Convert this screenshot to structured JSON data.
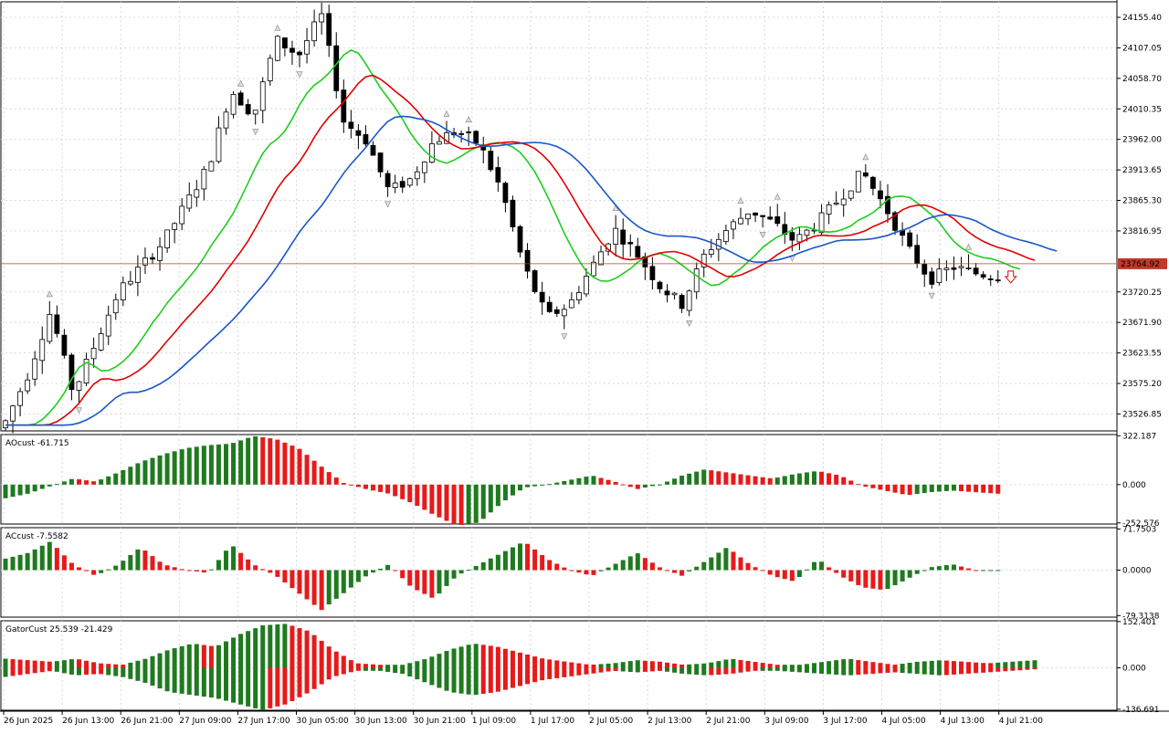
{
  "colors": {
    "bull": "#ffffff",
    "bear": "#000000",
    "green": "#1fcc1f",
    "red_line": "#e00000",
    "blue": "#1a57c8",
    "hist_up": "#1f7a1f",
    "hist_down": "#e61a1a",
    "price_line": "#c0392b",
    "grid": "#d9d9d9"
  },
  "chart_data": [
    {
      "type": "candlestick",
      "symbol_timeframe": "",
      "price_axis_ticks": [
        "24155.40",
        "24107.05",
        "24058.70",
        "24010.35",
        "23962.00",
        "23913.65",
        "23865.30",
        "23816.95",
        "23764.92",
        "23720.25",
        "23671.90",
        "23623.55",
        "23575.20",
        "23526.85"
      ],
      "ylim": [
        23500,
        24180
      ],
      "current_price": "23764.92",
      "time_labels": [
        "26 Jun 2025",
        "26 Jun 13:00",
        "26 Jun 21:00",
        "27 Jun 09:00",
        "27 Jun 17:00",
        "30 Jun 05:00",
        "30 Jun 13:00",
        "30 Jun 21:00",
        "1 Jul 09:00",
        "1 Jul 17:00",
        "2 Jul 05:00",
        "2 Jul 13:00",
        "2 Jul 21:00",
        "3 Jul 09:00",
        "3 Jul 17:00",
        "4 Jul 05:00",
        "4 Jul 13:00",
        "4 Jul 21:00"
      ],
      "close_anchors": [
        23515,
        23590,
        23690,
        23560,
        23640,
        23720,
        23760,
        23800,
        23860,
        23920,
        24040,
        24000,
        24120,
        24095,
        24160,
        23990,
        23960,
        23880,
        23900,
        23960,
        23975,
        23955,
        23880,
        23760,
        23680,
        23700,
        23760,
        23820,
        23780,
        23730,
        23700,
        23780,
        23820,
        23850,
        23830,
        23800,
        23830,
        23870,
        23910,
        23855,
        23790,
        23740,
        23760,
        23750,
        23745
      ],
      "series": [
        {
          "name": "green",
          "note": "alligator lips"
        },
        {
          "name": "red",
          "note": "alligator teeth"
        },
        {
          "name": "blue",
          "note": "alligator jaw"
        }
      ]
    },
    {
      "type": "histogram",
      "label": "AOcust -61.715",
      "ticks": [
        "322.187",
        "0.000",
        "-252.576"
      ],
      "ylim": [
        -260,
        330
      ],
      "anchors": [
        -90,
        -60,
        -10,
        40,
        20,
        80,
        150,
        200,
        240,
        260,
        270,
        320,
        300,
        240,
        120,
        10,
        -30,
        -60,
        -120,
        -200,
        -270,
        -250,
        -120,
        -20,
        0,
        30,
        60,
        20,
        -30,
        0,
        60,
        100,
        80,
        60,
        40,
        70,
        90,
        60,
        -10,
        -40,
        -70,
        -50,
        -40,
        -50,
        -60
      ]
    },
    {
      "type": "histogram",
      "label": "ACcust -7.5582",
      "ticks": [
        "71.7503",
        "0.0000",
        "-79.3138"
      ],
      "ylim": [
        -82,
        74
      ],
      "anchors": [
        20,
        30,
        50,
        10,
        -10,
        10,
        40,
        10,
        0,
        -5,
        45,
        10,
        -10,
        -40,
        -70,
        -40,
        -10,
        10,
        -30,
        -50,
        -10,
        10,
        30,
        50,
        20,
        0,
        -10,
        10,
        30,
        5,
        -10,
        15,
        40,
        10,
        -10,
        -20,
        20,
        -10,
        -30,
        -35,
        -15,
        5,
        10,
        0,
        0
      ]
    },
    {
      "type": "histogram",
      "label": "GatorCust 25.539 -21.429",
      "ticks": [
        "152.401",
        "0.000",
        "-136.691"
      ],
      "ylim": [
        -140,
        155
      ],
      "upper_anchors": [
        30,
        25,
        20,
        30,
        15,
        10,
        30,
        60,
        80,
        70,
        110,
        140,
        145,
        120,
        60,
        15,
        10,
        10,
        30,
        60,
        80,
        70,
        50,
        30,
        20,
        10,
        15,
        25,
        20,
        10,
        15,
        30,
        20,
        10,
        10,
        20,
        30,
        20,
        10,
        20,
        25,
        20,
        15,
        20,
        25
      ],
      "lower_anchors": [
        -30,
        -20,
        -10,
        -25,
        -20,
        -30,
        -50,
        -80,
        -90,
        -100,
        -120,
        -140,
        -120,
        -80,
        -30,
        -10,
        -10,
        -20,
        -50,
        -80,
        -90,
        -80,
        -60,
        -40,
        -30,
        -20,
        -10,
        -15,
        -10,
        -20,
        -25,
        -20,
        -10,
        -10,
        -15,
        -20,
        -25,
        -20,
        -15,
        -20,
        -25,
        -20,
        -15,
        -10,
        -5
      ]
    }
  ]
}
